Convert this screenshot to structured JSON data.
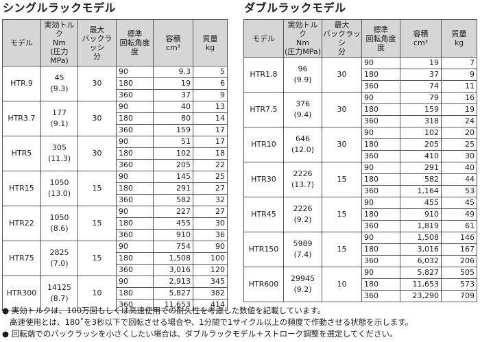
{
  "single": {
    "title": "シングルラックモデル",
    "headers": {
      "model": "モデル",
      "torque": [
        "実効トルク",
        "Nm",
        "(圧力MPa)"
      ],
      "backlash": [
        "最大",
        "バックラッシ",
        "分"
      ],
      "angle": [
        "標準",
        "回転角度",
        "度"
      ],
      "volume": [
        "容積",
        "cm³"
      ],
      "mass": [
        "質量",
        "kg"
      ]
    },
    "models": [
      {
        "name": "HTR.9",
        "torque": "45",
        "pressure": "(9.3)",
        "backlash": "30",
        "rows": [
          {
            "angle": "90",
            "volume": "9.3",
            "mass": "5"
          },
          {
            "angle": "180",
            "volume": "19",
            "mass": "6"
          },
          {
            "angle": "360",
            "volume": "37",
            "mass": "9"
          }
        ]
      },
      {
        "name": "HTR3.7",
        "torque": "177",
        "pressure": "(9.1)",
        "backlash": "30",
        "rows": [
          {
            "angle": "90",
            "volume": "40",
            "mass": "13"
          },
          {
            "angle": "180",
            "volume": "80",
            "mass": "14"
          },
          {
            "angle": "360",
            "volume": "159",
            "mass": "17"
          }
        ]
      },
      {
        "name": "HTR5",
        "torque": "305",
        "pressure": "(11.3)",
        "backlash": "30",
        "rows": [
          {
            "angle": "90",
            "volume": "51",
            "mass": "17"
          },
          {
            "angle": "180",
            "volume": "102",
            "mass": "18"
          },
          {
            "angle": "360",
            "volume": "205",
            "mass": "22"
          }
        ]
      },
      {
        "name": "HTR15",
        "torque": "1050",
        "pressure": "(13.0)",
        "backlash": "15",
        "rows": [
          {
            "angle": "90",
            "volume": "145",
            "mass": "25"
          },
          {
            "angle": "180",
            "volume": "291",
            "mass": "27"
          },
          {
            "angle": "360",
            "volume": "582",
            "mass": "32"
          }
        ]
      },
      {
        "name": "HTR22",
        "torque": "1050",
        "pressure": "(8.6)",
        "backlash": "15",
        "rows": [
          {
            "angle": "90",
            "volume": "227",
            "mass": "27"
          },
          {
            "angle": "180",
            "volume": "455",
            "mass": "30"
          },
          {
            "angle": "360",
            "volume": "910",
            "mass": "36"
          }
        ]
      },
      {
        "name": "HTR75",
        "torque": "2825",
        "pressure": "(7.0)",
        "backlash": "15",
        "rows": [
          {
            "angle": "90",
            "volume": "754",
            "mass": "90"
          },
          {
            "angle": "180",
            "volume": "1,508",
            "mass": "100"
          },
          {
            "angle": "360",
            "volume": "3,016",
            "mass": "120"
          }
        ]
      },
      {
        "name": "HTR300",
        "torque": "14125",
        "pressure": "(8.7)",
        "backlash": "10",
        "rows": [
          {
            "angle": "90",
            "volume": "2,913",
            "mass": "345"
          },
          {
            "angle": "180",
            "volume": "5,827",
            "mass": "382"
          },
          {
            "angle": "360",
            "volume": "11,653",
            "mass": "414"
          }
        ]
      }
    ]
  },
  "double": {
    "title": "ダブルラックモデル",
    "headers": {
      "model": "モデル",
      "torque": [
        "実効トルク",
        "Nm",
        "(圧力MPa)"
      ],
      "backlash": [
        "最大",
        "バックラッシ",
        "分"
      ],
      "angle": [
        "標準",
        "回転角度",
        "度"
      ],
      "volume": [
        "容積",
        "cm³"
      ],
      "mass": [
        "質量",
        "kg"
      ]
    },
    "models": [
      {
        "name": "HTR1.8",
        "torque": "96",
        "pressure": "(9.9)",
        "backlash": "30",
        "rows": [
          {
            "angle": "90",
            "volume": "19",
            "mass": "7"
          },
          {
            "angle": "180",
            "volume": "37",
            "mass": "9"
          },
          {
            "angle": "360",
            "volume": "74",
            "mass": "11"
          }
        ]
      },
      {
        "name": "HTR7.5",
        "torque": "376",
        "pressure": "(9.4)",
        "backlash": "30",
        "rows": [
          {
            "angle": "90",
            "volume": "79",
            "mass": "16"
          },
          {
            "angle": "180",
            "volume": "159",
            "mass": "19"
          },
          {
            "angle": "360",
            "volume": "318",
            "mass": "24"
          }
        ]
      },
      {
        "name": "HTR10",
        "torque": "646",
        "pressure": "(12.0)",
        "backlash": "30",
        "rows": [
          {
            "angle": "90",
            "volume": "102",
            "mass": "20"
          },
          {
            "angle": "180",
            "volume": "205",
            "mass": "25"
          },
          {
            "angle": "360",
            "volume": "410",
            "mass": "30"
          }
        ]
      },
      {
        "name": "HTR30",
        "torque": "2226",
        "pressure": "(13.7)",
        "backlash": "15",
        "rows": [
          {
            "angle": "90",
            "volume": "291",
            "mass": "40"
          },
          {
            "angle": "180",
            "volume": "582",
            "mass": "44"
          },
          {
            "angle": "360",
            "volume": "1,164",
            "mass": "53"
          }
        ]
      },
      {
        "name": "HTR45",
        "torque": "2226",
        "pressure": "(9.2)",
        "backlash": "15",
        "rows": [
          {
            "angle": "90",
            "volume": "455",
            "mass": "45"
          },
          {
            "angle": "180",
            "volume": "910",
            "mass": "49"
          },
          {
            "angle": "360",
            "volume": "1,819",
            "mass": "61"
          }
        ]
      },
      {
        "name": "HTR150",
        "torque": "5989",
        "pressure": "(7.4)",
        "backlash": "15",
        "rows": [
          {
            "angle": "90",
            "volume": "1,508",
            "mass": "146"
          },
          {
            "angle": "180",
            "volume": "3,016",
            "mass": "167"
          },
          {
            "angle": "360",
            "volume": "6,032",
            "mass": "206"
          }
        ]
      },
      {
        "name": "HTR600",
        "torque": "29945",
        "pressure": "(9.2)",
        "backlash": "10",
        "rows": [
          {
            "angle": "90",
            "volume": "5,827",
            "mass": "505"
          },
          {
            "angle": "180",
            "volume": "11,653",
            "mass": "573"
          },
          {
            "angle": "360",
            "volume": "23,290",
            "mass": "709"
          }
        ]
      }
    ]
  },
  "notes": [
    "● 実効トルクは、100万回もしくは高速使用での耐久性を考慮した数値を記載しています。",
    "高速使用とは、180˚を3秒以下で回転させる場合や、1分間で1サイクル以上の頻度で作動させる状態を示します。",
    "● 回転端でのバックラッシを小さくしたい場合は、ダブルラックモデル＋ストローク調整を選定してください。"
  ]
}
